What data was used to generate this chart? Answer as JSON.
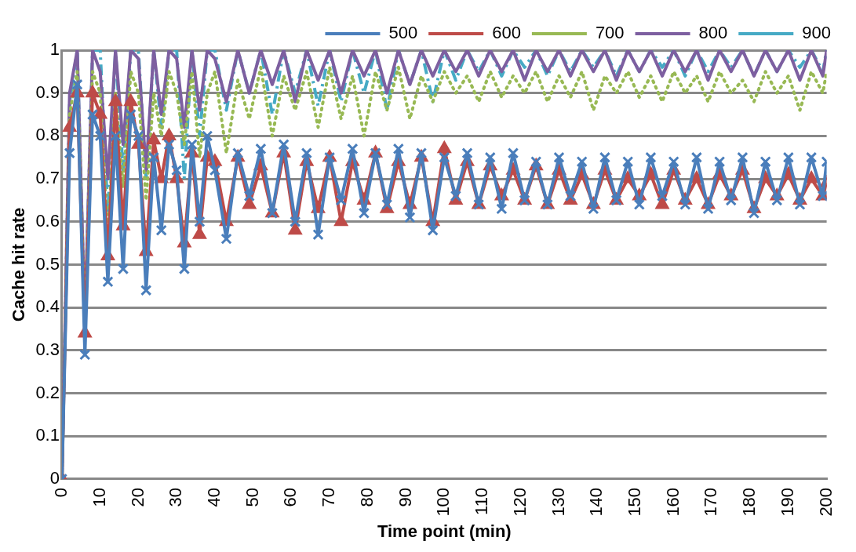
{
  "chart_data": {
    "type": "line",
    "xlabel": "Time point (min)",
    "ylabel": "Cache hit rate",
    "ylim": [
      0,
      1
    ],
    "yticks": [
      0,
      0.1,
      0.2,
      0.3,
      0.4,
      0.5,
      0.6,
      0.7,
      0.8,
      0.9,
      1
    ],
    "xlim": [
      0,
      200
    ],
    "xticks": [
      0,
      10,
      20,
      30,
      40,
      50,
      60,
      70,
      80,
      90,
      100,
      110,
      120,
      130,
      140,
      150,
      160,
      170,
      180,
      190,
      200
    ],
    "grid": "y",
    "legend": "top",
    "x": [
      0,
      2,
      4,
      6,
      8,
      10,
      12,
      14,
      16,
      18,
      20,
      22,
      24,
      26,
      28,
      30,
      32,
      34,
      36,
      38,
      40,
      43,
      46,
      49,
      52,
      55,
      58,
      61,
      64,
      67,
      70,
      73,
      76,
      79,
      82,
      85,
      88,
      91,
      94,
      97,
      100,
      103,
      106,
      109,
      112,
      115,
      118,
      121,
      124,
      127,
      130,
      133,
      136,
      139,
      142,
      145,
      148,
      151,
      154,
      157,
      160,
      163,
      166,
      169,
      172,
      175,
      178,
      181,
      184,
      187,
      190,
      193,
      196,
      199,
      200
    ],
    "series": [
      {
        "name": "500",
        "color": "#4a7ebb",
        "marker": "cross",
        "line_style": "solid",
        "values": [
          0,
          0.76,
          0.92,
          0.29,
          0.85,
          0.8,
          0.46,
          0.8,
          0.49,
          0.85,
          0.8,
          0.44,
          0.75,
          0.58,
          0.78,
          0.72,
          0.49,
          0.78,
          0.6,
          0.8,
          0.72,
          0.56,
          0.76,
          0.66,
          0.77,
          0.62,
          0.78,
          0.6,
          0.76,
          0.57,
          0.75,
          0.65,
          0.77,
          0.62,
          0.76,
          0.64,
          0.77,
          0.61,
          0.76,
          0.58,
          0.75,
          0.66,
          0.76,
          0.64,
          0.75,
          0.63,
          0.76,
          0.65,
          0.74,
          0.64,
          0.75,
          0.66,
          0.74,
          0.63,
          0.75,
          0.65,
          0.74,
          0.64,
          0.75,
          0.66,
          0.74,
          0.64,
          0.75,
          0.63,
          0.74,
          0.65,
          0.75,
          0.62,
          0.74,
          0.65,
          0.75,
          0.64,
          0.75,
          0.66,
          0.74
        ]
      },
      {
        "name": "600",
        "color": "#be4b48",
        "marker": "triangle",
        "line_style": "solid",
        "values": [
          0,
          0.82,
          0.9,
          0.34,
          0.9,
          0.85,
          0.52,
          0.88,
          0.59,
          0.88,
          0.78,
          0.53,
          0.79,
          0.7,
          0.8,
          0.7,
          0.55,
          0.76,
          0.57,
          0.75,
          0.74,
          0.6,
          0.75,
          0.64,
          0.73,
          0.62,
          0.76,
          0.58,
          0.74,
          0.63,
          0.75,
          0.6,
          0.74,
          0.65,
          0.76,
          0.63,
          0.74,
          0.64,
          0.75,
          0.6,
          0.77,
          0.65,
          0.74,
          0.64,
          0.73,
          0.66,
          0.72,
          0.65,
          0.73,
          0.64,
          0.72,
          0.65,
          0.71,
          0.64,
          0.72,
          0.65,
          0.7,
          0.66,
          0.71,
          0.64,
          0.72,
          0.65,
          0.7,
          0.64,
          0.71,
          0.66,
          0.72,
          0.63,
          0.7,
          0.66,
          0.71,
          0.65,
          0.7,
          0.66,
          0.69
        ]
      },
      {
        "name": "700",
        "color": "#98b954",
        "marker": "none",
        "line_style": "dotted",
        "values": [
          0,
          0.85,
          0.95,
          0.35,
          0.95,
          0.9,
          0.56,
          0.9,
          0.68,
          0.95,
          0.9,
          0.65,
          0.9,
          0.8,
          0.95,
          0.9,
          0.78,
          0.95,
          0.75,
          0.9,
          0.95,
          0.76,
          0.93,
          0.84,
          0.96,
          0.8,
          0.94,
          0.86,
          0.95,
          0.82,
          0.96,
          0.84,
          0.94,
          0.8,
          0.95,
          0.86,
          0.96,
          0.84,
          0.94,
          0.88,
          0.95,
          0.9,
          0.94,
          0.88,
          0.95,
          0.89,
          0.94,
          0.9,
          0.95,
          0.88,
          0.94,
          0.89,
          0.95,
          0.86,
          0.94,
          0.9,
          0.95,
          0.89,
          0.94,
          0.88,
          0.95,
          0.9,
          0.94,
          0.88,
          0.95,
          0.9,
          0.93,
          0.88,
          0.95,
          0.9,
          0.94,
          0.86,
          0.95,
          0.9,
          0.95
        ]
      },
      {
        "name": "800",
        "color": "#7d5fa0",
        "marker": "none",
        "line_style": "solid",
        "values": [
          0,
          0.9,
          1,
          0.37,
          1,
          0.95,
          0.7,
          1,
          0.78,
          1,
          0.98,
          0.72,
          1,
          0.85,
          1,
          0.98,
          0.82,
          1,
          0.86,
          1,
          0.98,
          0.88,
          1,
          0.9,
          1,
          0.92,
          1,
          0.88,
          1,
          0.93,
          1,
          0.9,
          1,
          0.94,
          1,
          0.9,
          1,
          0.92,
          1,
          0.94,
          1,
          0.95,
          1,
          0.94,
          1,
          0.95,
          1,
          0.93,
          1,
          0.95,
          1,
          0.94,
          1,
          0.95,
          1,
          0.93,
          1,
          0.95,
          1,
          0.94,
          1,
          0.95,
          1,
          0.93,
          1,
          0.95,
          1,
          0.94,
          1,
          0.95,
          1,
          0.93,
          1,
          0.94,
          1
        ]
      },
      {
        "name": "900",
        "color": "#46aac5",
        "marker": "none",
        "line_style": "dashed",
        "values": [
          0,
          0.88,
          1,
          0.36,
          1,
          1,
          0.62,
          1,
          0.72,
          1,
          1,
          0.7,
          1,
          0.82,
          1,
          1,
          0.7,
          1,
          0.8,
          1,
          1,
          0.86,
          1,
          0.9,
          1,
          0.85,
          1,
          0.9,
          1,
          0.87,
          1,
          0.88,
          1,
          0.9,
          1,
          0.86,
          1,
          0.92,
          1,
          0.88,
          1,
          0.93,
          1,
          0.95,
          1,
          0.94,
          1,
          0.96,
          1,
          0.94,
          1,
          0.95,
          1,
          0.96,
          1,
          0.94,
          1,
          0.95,
          1,
          0.96,
          1,
          0.94,
          1,
          0.95,
          1,
          0.96,
          1,
          0.94,
          1,
          0.95,
          1,
          0.96,
          1,
          0.95,
          1
        ]
      }
    ]
  }
}
